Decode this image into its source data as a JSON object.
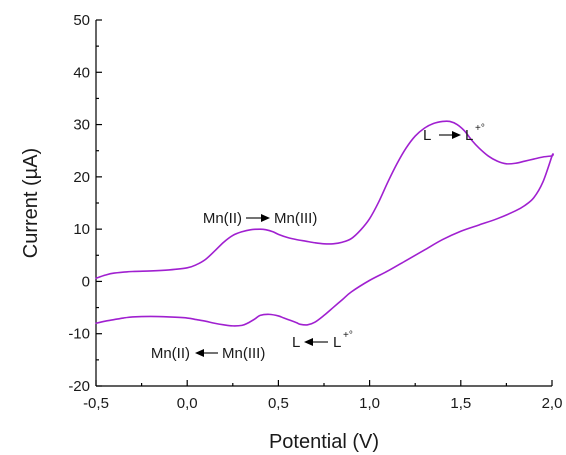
{
  "chart_data": {
    "type": "line",
    "title": "",
    "xlabel": "Potential (V)",
    "ylabel": "Current (µA)",
    "xlim": [
      -0.5,
      2.0
    ],
    "ylim": [
      -20,
      50
    ],
    "x_ticks": [
      "-0,5",
      "0,0",
      "0,5",
      "1,0",
      "1,5",
      "2,0"
    ],
    "x_tick_values": [
      -0.5,
      0.0,
      0.5,
      1.0,
      1.5,
      2.0
    ],
    "y_ticks": [
      "-20",
      "-10",
      "0",
      "10",
      "20",
      "30",
      "40",
      "50"
    ],
    "y_tick_values": [
      -20,
      -10,
      0,
      10,
      20,
      30,
      40,
      50
    ],
    "grid": false,
    "legend": "none",
    "series": [
      {
        "color": "#a020d0",
        "x": [
          -0.5,
          -0.45,
          -0.4,
          -0.3,
          -0.2,
          -0.1,
          0.0,
          0.05,
          0.1,
          0.15,
          0.2,
          0.25,
          0.3,
          0.35,
          0.4,
          0.43,
          0.47,
          0.5,
          0.55,
          0.6,
          0.65,
          0.7,
          0.75,
          0.8,
          0.85,
          0.9,
          0.95,
          1.0,
          1.05,
          1.1,
          1.15,
          1.2,
          1.25,
          1.3,
          1.35,
          1.4,
          1.44,
          1.48,
          1.52,
          1.56,
          1.6,
          1.65,
          1.7,
          1.75,
          1.8,
          1.85,
          1.9,
          1.95,
          2.0,
          2.0,
          1.95,
          1.9,
          1.85,
          1.8,
          1.7,
          1.6,
          1.5,
          1.4,
          1.3,
          1.2,
          1.1,
          1.0,
          0.9,
          0.85,
          0.8,
          0.75,
          0.7,
          0.66,
          0.62,
          0.6,
          0.57,
          0.53,
          0.5,
          0.45,
          0.4,
          0.37,
          0.33,
          0.3,
          0.25,
          0.2,
          0.15,
          0.1,
          0.05,
          0.0,
          -0.1,
          -0.2,
          -0.3,
          -0.35,
          -0.4,
          -0.45,
          -0.5
        ],
        "y": [
          0.6,
          1.2,
          1.6,
          1.9,
          2.0,
          2.2,
          2.6,
          3.2,
          4.2,
          5.8,
          7.5,
          8.8,
          9.5,
          9.9,
          10.0,
          9.9,
          9.5,
          9.0,
          8.4,
          8.0,
          7.7,
          7.4,
          7.2,
          7.2,
          7.5,
          8.2,
          9.8,
          12.0,
          15.2,
          19.0,
          22.5,
          25.5,
          27.8,
          29.3,
          30.2,
          30.6,
          30.6,
          30.0,
          28.8,
          27.0,
          25.5,
          24.0,
          23.0,
          22.5,
          22.6,
          23.0,
          23.4,
          23.8,
          24.0,
          24.0,
          19.0,
          16.0,
          14.5,
          13.5,
          12.0,
          10.8,
          9.6,
          8.0,
          6.0,
          4.0,
          2.0,
          0.2,
          -2.0,
          -3.5,
          -5.0,
          -6.5,
          -7.8,
          -8.3,
          -8.2,
          -7.9,
          -7.5,
          -7.0,
          -6.6,
          -6.3,
          -6.5,
          -7.2,
          -8.0,
          -8.4,
          -8.5,
          -8.3,
          -8.0,
          -7.6,
          -7.3,
          -7.0,
          -6.8,
          -6.7,
          -6.8,
          -7.0,
          -7.3,
          -7.6,
          -8.0
        ]
      }
    ],
    "annotations": {
      "mn_ox_left": "Mn(II)",
      "mn_ox_right": "Mn(III)",
      "mn_red_left": "Mn(II)",
      "mn_red_right": "Mn(III)",
      "l_ox_left": "L",
      "l_ox_right": "L",
      "l_ox_sup": "+°",
      "l_red_left": "L",
      "l_red_right": "L",
      "l_red_sup": "+°"
    }
  }
}
